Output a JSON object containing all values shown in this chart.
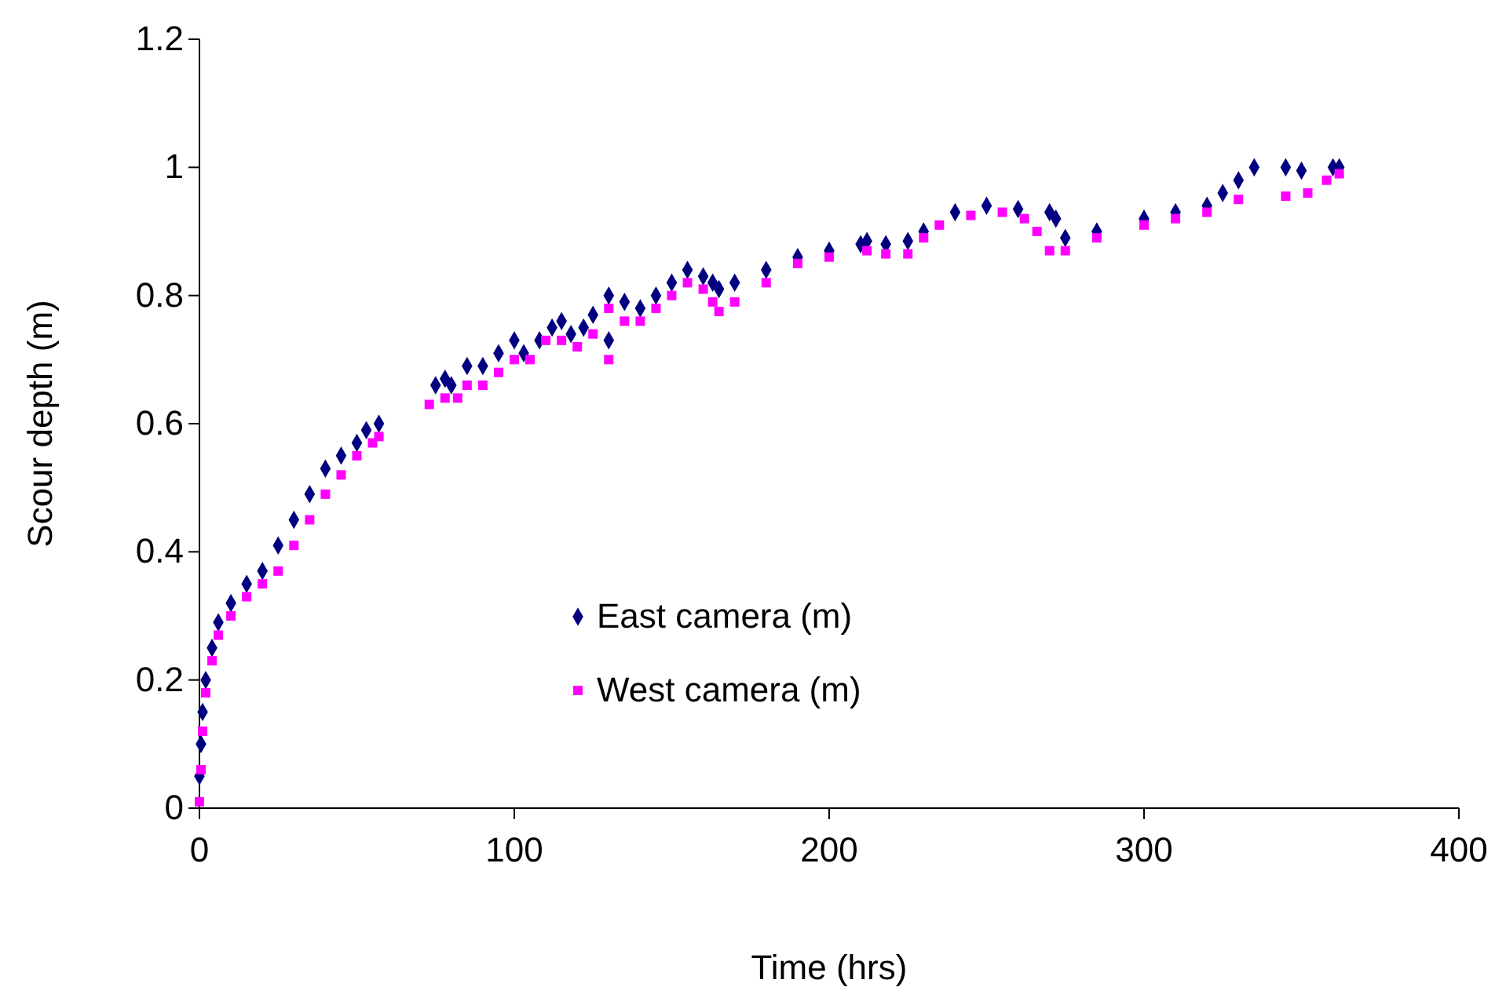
{
  "chart_data": {
    "type": "scatter",
    "xlabel": "Time (hrs)",
    "ylabel": "Scour depth (m)",
    "xlim": [
      0,
      400
    ],
    "xticks": [
      0,
      100,
      200,
      300,
      400
    ],
    "ylim": [
      0,
      1.2
    ],
    "yticks": [
      0,
      0.2,
      0.4,
      0.6,
      0.8,
      1,
      1.2
    ],
    "grid": false,
    "legend": "bottom",
    "series": [
      {
        "name": "East camera (m)",
        "color": "#000080",
        "marker": "diamond",
        "x": [
          0,
          0.5,
          1,
          2,
          4,
          6,
          10,
          15,
          20,
          25,
          30,
          35,
          40,
          45,
          50,
          53,
          57,
          75,
          78,
          80,
          85,
          90,
          95,
          100,
          103,
          108,
          112,
          115,
          118,
          122,
          125,
          130,
          130,
          135,
          140,
          145,
          150,
          155,
          160,
          163,
          165,
          170,
          180,
          190,
          200,
          210,
          212,
          218,
          225,
          230,
          240,
          250,
          260,
          270,
          272,
          275,
          285,
          300,
          310,
          320,
          325,
          330,
          335,
          345,
          350,
          360,
          362
        ],
        "values": [
          0.05,
          0.1,
          0.15,
          0.2,
          0.25,
          0.29,
          0.32,
          0.35,
          0.37,
          0.41,
          0.45,
          0.49,
          0.53,
          0.55,
          0.57,
          0.59,
          0.6,
          0.66,
          0.67,
          0.66,
          0.69,
          0.69,
          0.71,
          0.73,
          0.71,
          0.73,
          0.75,
          0.76,
          0.74,
          0.75,
          0.77,
          0.8,
          0.73,
          0.79,
          0.78,
          0.8,
          0.82,
          0.84,
          0.83,
          0.82,
          0.81,
          0.82,
          0.84,
          0.86,
          0.87,
          0.88,
          0.885,
          0.88,
          0.885,
          0.9,
          0.93,
          0.94,
          0.935,
          0.93,
          0.92,
          0.89,
          0.9,
          0.92,
          0.93,
          0.94,
          0.96,
          0.98,
          1,
          1,
          0.995,
          1,
          1
        ]
      },
      {
        "name": "West camera (m)",
        "color": "#ff00ff",
        "marker": "square",
        "x": [
          0,
          0.5,
          1,
          2,
          4,
          6,
          10,
          15,
          20,
          25,
          30,
          35,
          40,
          45,
          50,
          55,
          57,
          73,
          78,
          82,
          85,
          90,
          95,
          100,
          105,
          110,
          115,
          120,
          125,
          130,
          130,
          135,
          140,
          145,
          150,
          155,
          160,
          163,
          165,
          170,
          180,
          190,
          200,
          212,
          218,
          225,
          230,
          235,
          245,
          255,
          262,
          266,
          270,
          275,
          285,
          300,
          310,
          320,
          330,
          345,
          352,
          358,
          362
        ],
        "values": [
          0.01,
          0.06,
          0.12,
          0.18,
          0.23,
          0.27,
          0.3,
          0.33,
          0.35,
          0.37,
          0.41,
          0.45,
          0.49,
          0.52,
          0.55,
          0.57,
          0.58,
          0.63,
          0.64,
          0.64,
          0.66,
          0.66,
          0.68,
          0.7,
          0.7,
          0.73,
          0.73,
          0.72,
          0.74,
          0.78,
          0.7,
          0.76,
          0.76,
          0.78,
          0.8,
          0.82,
          0.81,
          0.79,
          0.775,
          0.79,
          0.82,
          0.85,
          0.86,
          0.87,
          0.865,
          0.865,
          0.89,
          0.91,
          0.925,
          0.93,
          0.92,
          0.9,
          0.87,
          0.87,
          0.89,
          0.91,
          0.92,
          0.93,
          0.95,
          0.955,
          0.96,
          0.98,
          0.99
        ]
      }
    ]
  }
}
